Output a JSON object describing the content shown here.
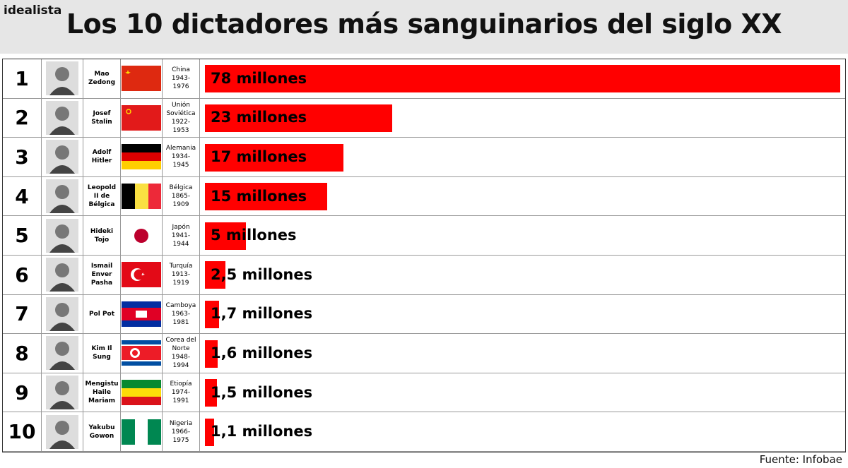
{
  "brand": "idealista",
  "chart_data": {
    "type": "bar",
    "title": "Los 10 dictadores más sanguinarios del siglo XX",
    "source": "Fuente: Infobae",
    "ranks": [
      1,
      2,
      3,
      4,
      5,
      6,
      7,
      8,
      9,
      10
    ],
    "names": [
      "Mao Zedong",
      "Josef Stalin",
      "Adolf Hitler",
      "Leopold II de Bélgica",
      "Hideki Tojo",
      "Ismail Enver Pasha",
      "Pol Pot",
      "Kim Il Sung",
      "Mengistu Haile Mariam",
      "Yakubu Gowon"
    ],
    "countries": [
      "China",
      "Unión Soviética",
      "Alemania",
      "Bélgica",
      "Japón",
      "Turquía",
      "Camboya",
      "Corea del Norte",
      "Etiopía",
      "Nigeria"
    ],
    "years": [
      "1943-1976",
      "1922-1953",
      "1934-1945",
      "1865-1909",
      "1941-1944",
      "1913-1919",
      "1963-1981",
      "1948-1994",
      "1974-1991",
      "1966-1975"
    ],
    "values": [
      78,
      23,
      17,
      15,
      5,
      2.5,
      1.7,
      1.6,
      1.5,
      1.1
    ],
    "value_labels": [
      "78 millones",
      "23 millones",
      "17 millones",
      "15 millones",
      "5 millones",
      "2,5 millones",
      "1,7 millones",
      "1,6 millones",
      "1,5 millones",
      "1,1 millones"
    ],
    "color": "#ff0000",
    "xlim": [
      0,
      78
    ]
  }
}
